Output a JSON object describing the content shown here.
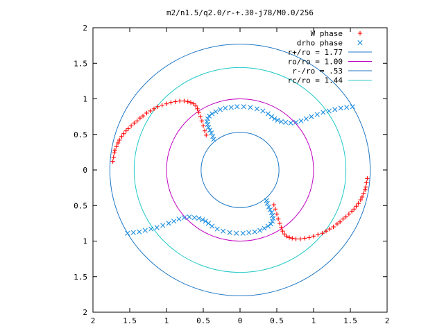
{
  "chart_data": {
    "type": "scatter",
    "title": "m2/n1.5/q2.0/r-+.30-j78/M0.0/256",
    "xlim": [
      -2,
      2
    ],
    "ylim": [
      -2,
      2
    ],
    "x_ticks": [
      {
        "v": -2,
        "label": "2"
      },
      {
        "v": -1.5,
        "label": "1.5"
      },
      {
        "v": -1,
        "label": "1"
      },
      {
        "v": -0.5,
        "label": "0.5"
      },
      {
        "v": 0,
        "label": "0"
      },
      {
        "v": 0.5,
        "label": "0.5"
      },
      {
        "v": 1,
        "label": "1"
      },
      {
        "v": 1.5,
        "label": "1.5"
      },
      {
        "v": 2,
        "label": "2"
      }
    ],
    "y_ticks": [
      {
        "v": 2,
        "label": "2"
      },
      {
        "v": 1.5,
        "label": "1.5"
      },
      {
        "v": 1,
        "label": "1"
      },
      {
        "v": 0.5,
        "label": "0.5"
      },
      {
        "v": 0,
        "label": "0"
      },
      {
        "v": -0.5,
        "label": "0.5"
      },
      {
        "v": -1,
        "label": "1"
      },
      {
        "v": -1.5,
        "label": "1.5"
      },
      {
        "v": -2,
        "label": "2"
      }
    ],
    "grid": false,
    "legend_position": "top-right",
    "circles": [
      {
        "label": "r+/ro = 1.77",
        "r": 1.77,
        "color": "#1f77c4"
      },
      {
        "label": "ro/ro = 1.00",
        "r": 1.0,
        "color": "#c000c0"
      },
      {
        "label": "r-/ro = .53",
        "r": 0.53,
        "color": "#1f77c4"
      },
      {
        "label": "rc/ro = 1.44",
        "r": 1.44,
        "color": "#20c8c8"
      }
    ],
    "series": [
      {
        "name": "W phase",
        "marker": "plus",
        "color": "#ff0000",
        "points": [
          [
            -1.73,
            0.12
          ],
          [
            -1.72,
            0.18
          ],
          [
            -1.71,
            0.24
          ],
          [
            -1.7,
            0.28
          ],
          [
            -1.68,
            0.33
          ],
          [
            -1.66,
            0.38
          ],
          [
            -1.64,
            0.42
          ],
          [
            -1.61,
            0.47
          ],
          [
            -1.58,
            0.51
          ],
          [
            -1.55,
            0.55
          ],
          [
            -1.52,
            0.58
          ],
          [
            -1.48,
            0.62
          ],
          [
            -1.44,
            0.66
          ],
          [
            -1.4,
            0.69
          ],
          [
            -1.36,
            0.73
          ],
          [
            -1.32,
            0.76
          ],
          [
            -1.27,
            0.8
          ],
          [
            -1.22,
            0.83
          ],
          [
            -1.17,
            0.86
          ],
          [
            -1.12,
            0.89
          ],
          [
            -1.06,
            0.91
          ],
          [
            -1.0,
            0.93
          ],
          [
            -0.94,
            0.95
          ],
          [
            -0.88,
            0.96
          ],
          [
            -0.82,
            0.97
          ],
          [
            -0.76,
            0.97
          ],
          [
            -0.71,
            0.96
          ],
          [
            -0.67,
            0.95
          ],
          [
            -0.63,
            0.93
          ],
          [
            -0.6,
            0.9
          ],
          [
            -0.58,
            0.86
          ],
          [
            -0.56,
            0.81
          ],
          [
            -0.54,
            0.75
          ],
          [
            -0.52,
            0.69
          ],
          [
            -0.5,
            0.62
          ],
          [
            -0.48,
            0.55
          ],
          [
            -0.46,
            0.49
          ],
          [
            1.73,
            -0.12
          ],
          [
            1.72,
            -0.18
          ],
          [
            1.71,
            -0.24
          ],
          [
            1.7,
            -0.28
          ],
          [
            1.68,
            -0.33
          ],
          [
            1.66,
            -0.38
          ],
          [
            1.64,
            -0.42
          ],
          [
            1.61,
            -0.47
          ],
          [
            1.58,
            -0.51
          ],
          [
            1.55,
            -0.55
          ],
          [
            1.52,
            -0.58
          ],
          [
            1.48,
            -0.62
          ],
          [
            1.44,
            -0.66
          ],
          [
            1.4,
            -0.69
          ],
          [
            1.36,
            -0.73
          ],
          [
            1.32,
            -0.76
          ],
          [
            1.27,
            -0.8
          ],
          [
            1.22,
            -0.83
          ],
          [
            1.17,
            -0.86
          ],
          [
            1.12,
            -0.89
          ],
          [
            1.06,
            -0.91
          ],
          [
            1.0,
            -0.93
          ],
          [
            0.94,
            -0.95
          ],
          [
            0.88,
            -0.96
          ],
          [
            0.82,
            -0.97
          ],
          [
            0.76,
            -0.97
          ],
          [
            0.71,
            -0.96
          ],
          [
            0.67,
            -0.95
          ],
          [
            0.63,
            -0.93
          ],
          [
            0.6,
            -0.9
          ],
          [
            0.58,
            -0.86
          ],
          [
            0.56,
            -0.81
          ],
          [
            0.54,
            -0.75
          ],
          [
            0.52,
            -0.69
          ],
          [
            0.5,
            -0.62
          ],
          [
            0.48,
            -0.55
          ],
          [
            0.46,
            -0.49
          ]
        ]
      },
      {
        "name": "drho phase",
        "marker": "cross",
        "color": "#1f8fe0",
        "points": [
          [
            -0.36,
            0.43
          ],
          [
            -0.37,
            0.47
          ],
          [
            -0.39,
            0.52
          ],
          [
            -0.41,
            0.56
          ],
          [
            -0.43,
            0.6
          ],
          [
            -0.44,
            0.64
          ],
          [
            -0.45,
            0.68
          ],
          [
            -0.44,
            0.72
          ],
          [
            -0.42,
            0.76
          ],
          [
            -0.38,
            0.79
          ],
          [
            -0.33,
            0.82
          ],
          [
            -0.27,
            0.85
          ],
          [
            -0.2,
            0.87
          ],
          [
            -0.12,
            0.88
          ],
          [
            -0.04,
            0.89
          ],
          [
            0.05,
            0.89
          ],
          [
            0.14,
            0.88
          ],
          [
            0.23,
            0.86
          ],
          [
            0.31,
            0.83
          ],
          [
            0.38,
            0.79
          ],
          [
            0.43,
            0.75
          ],
          [
            0.47,
            0.72
          ],
          [
            0.51,
            0.7
          ],
          [
            0.56,
            0.68
          ],
          [
            0.62,
            0.67
          ],
          [
            0.69,
            0.66
          ],
          [
            0.76,
            0.67
          ],
          [
            0.83,
            0.69
          ],
          [
            0.9,
            0.72
          ],
          [
            0.97,
            0.75
          ],
          [
            1.05,
            0.78
          ],
          [
            1.13,
            0.81
          ],
          [
            1.21,
            0.83
          ],
          [
            1.29,
            0.85
          ],
          [
            1.37,
            0.87
          ],
          [
            1.45,
            0.88
          ],
          [
            1.53,
            0.89
          ],
          [
            0.36,
            -0.43
          ],
          [
            0.37,
            -0.47
          ],
          [
            0.39,
            -0.52
          ],
          [
            0.41,
            -0.56
          ],
          [
            0.43,
            -0.6
          ],
          [
            0.44,
            -0.64
          ],
          [
            0.45,
            -0.68
          ],
          [
            0.44,
            -0.72
          ],
          [
            0.42,
            -0.76
          ],
          [
            0.38,
            -0.79
          ],
          [
            0.33,
            -0.82
          ],
          [
            0.27,
            -0.85
          ],
          [
            0.2,
            -0.87
          ],
          [
            0.12,
            -0.88
          ],
          [
            0.04,
            -0.89
          ],
          [
            -0.05,
            -0.89
          ],
          [
            -0.14,
            -0.88
          ],
          [
            -0.23,
            -0.86
          ],
          [
            -0.31,
            -0.83
          ],
          [
            -0.38,
            -0.79
          ],
          [
            -0.43,
            -0.75
          ],
          [
            -0.47,
            -0.72
          ],
          [
            -0.51,
            -0.7
          ],
          [
            -0.56,
            -0.68
          ],
          [
            -0.62,
            -0.67
          ],
          [
            -0.69,
            -0.66
          ],
          [
            -0.76,
            -0.67
          ],
          [
            -0.83,
            -0.69
          ],
          [
            -0.9,
            -0.72
          ],
          [
            -0.97,
            -0.75
          ],
          [
            -1.05,
            -0.78
          ],
          [
            -1.13,
            -0.81
          ],
          [
            -1.21,
            -0.83
          ],
          [
            -1.29,
            -0.85
          ],
          [
            -1.37,
            -0.87
          ],
          [
            -1.45,
            -0.88
          ],
          [
            -1.53,
            -0.89
          ]
        ]
      }
    ]
  }
}
